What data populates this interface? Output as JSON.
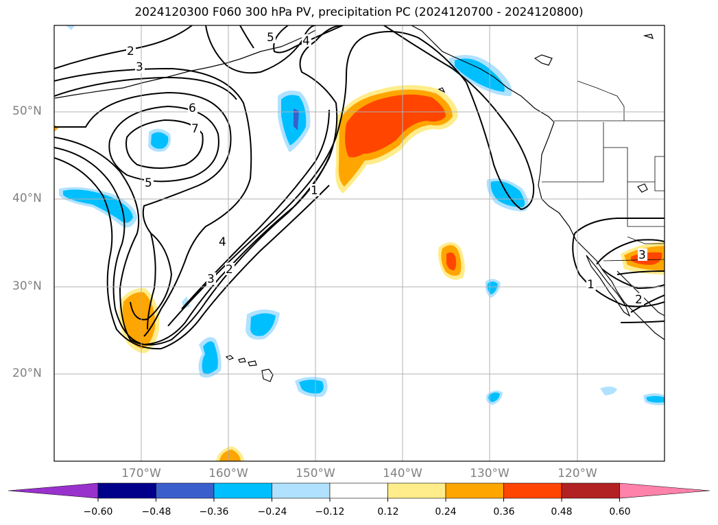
{
  "title": "2024120300 F060 300 hPa PV, precipitation PC (2024120700 - 2024120800)",
  "lat_labels": [
    "50°N",
    "40°N",
    "30°N",
    "20°N"
  ],
  "lon_labels": [
    "170°W",
    "160°W",
    "150°W",
    "140°W",
    "130°W",
    "120°W"
  ],
  "colorbar": {
    "ticks": [
      "−0.60",
      "−0.48",
      "−0.36",
      "−0.24",
      "−0.12",
      "0.12",
      "0.24",
      "0.36",
      "0.48",
      "0.60"
    ],
    "colors": {
      "under": "#9932CC",
      "bins": [
        "#00008B",
        "#3A5FCD",
        "#00BFFF",
        "#B0E2FF",
        "#FFFFFF",
        "#FFEC8B",
        "#FFA500",
        "#FF4500",
        "#B22222"
      ],
      "over": "#FF82AB"
    }
  },
  "contour_labels": [
    "1",
    "2",
    "3",
    "4",
    "5",
    "6",
    "7",
    "1",
    "2",
    "3",
    "2",
    "3",
    "4",
    "5",
    "1",
    "2"
  ],
  "colors": {
    "contour": "#000000",
    "grid": "#b0b0b0",
    "coast": "#000000"
  }
}
